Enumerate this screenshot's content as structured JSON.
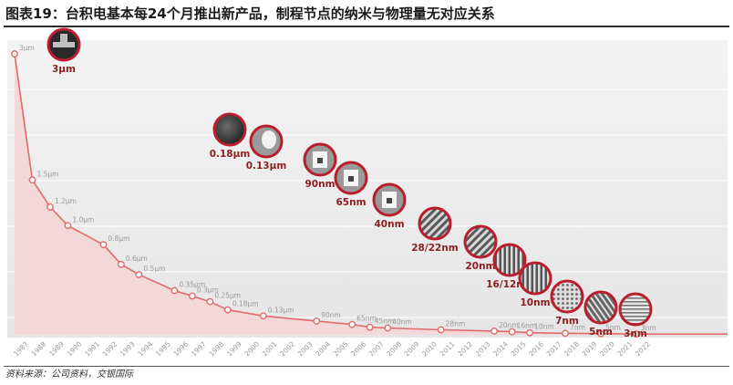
{
  "header": {
    "title": "图表19：台积电基本每24个月推出新产品，制程节点的纳米与物理量无对应关系"
  },
  "footer": {
    "source": "资料来源：公司资料，交银国际"
  },
  "colors": {
    "line": "#e06b6b",
    "area": "#f6d4d4",
    "node_fill": "#ffffff",
    "label_red": "#8b1e1e",
    "value_label": "#999999",
    "badge_ring": "#b81e2c"
  },
  "chart_data": {
    "type": "area",
    "title": "图表19：台积电基本每24个月推出新产品，制程节点的纳米与物理量无对应关系",
    "xlabel": "",
    "ylabel": "",
    "grid": true,
    "years": [
      "1987",
      "1988",
      "1989",
      "1990",
      "1991",
      "1992",
      "1993",
      "1994",
      "1995",
      "1996",
      "1997",
      "1998",
      "1999",
      "2000",
      "2001",
      "2002",
      "2003",
      "2004",
      "2005",
      "2006",
      "2007",
      "2008",
      "2009",
      "2010",
      "2011",
      "2012",
      "2013",
      "2014",
      "2015",
      "2016",
      "2017",
      "2018",
      "2019",
      "2020",
      "2021",
      "2022"
    ],
    "points": [
      {
        "year": 1987,
        "label": "3μm",
        "value": 3000
      },
      {
        "year": 1988,
        "label": "1.5μm",
        "value": 1500
      },
      {
        "year": 1989,
        "label": "1.2μm",
        "value": 1200
      },
      {
        "year": 1990,
        "label": "1.0μm",
        "value": 1000
      },
      {
        "year": 1992,
        "label": "0.8μm",
        "value": 800
      },
      {
        "year": 1993,
        "label": "0.6μm",
        "value": 600
      },
      {
        "year": 1994,
        "label": "0.5μm",
        "value": 500
      },
      {
        "year": 1996,
        "label": "0.35μm",
        "value": 350
      },
      {
        "year": 1997,
        "label": "0.3μm",
        "value": 300
      },
      {
        "year": 1998,
        "label": "0.25μm",
        "value": 250
      },
      {
        "year": 1999,
        "label": "0.18μm",
        "value": 180
      },
      {
        "year": 2001,
        "label": "0.13μm",
        "value": 130
      },
      {
        "year": 2004,
        "label": "90nm",
        "value": 90
      },
      {
        "year": 2006,
        "label": "65nm",
        "value": 65
      },
      {
        "year": 2007,
        "label": "45nm",
        "value": 45
      },
      {
        "year": 2008,
        "label": "40nm",
        "value": 40
      },
      {
        "year": 2011,
        "label": "28nm",
        "value": 28
      },
      {
        "year": 2014,
        "label": "20nm",
        "value": 20
      },
      {
        "year": 2015,
        "label": "16nm",
        "value": 16
      },
      {
        "year": 2016,
        "label": "10nm",
        "value": 10
      },
      {
        "year": 2018,
        "label": "7nm",
        "value": 7
      },
      {
        "year": 2020,
        "label": "5nm",
        "value": 5
      },
      {
        "year": 2022,
        "label": "3nm",
        "value": 3
      }
    ],
    "ylim": [
      0,
      3000
    ],
    "badges": [
      {
        "label": "3μm",
        "year": 1987,
        "pattern": "cross"
      },
      {
        "label": "0.18μm",
        "year": 1999,
        "pattern": "dark"
      },
      {
        "label": "0.13μm",
        "year": 2000,
        "pattern": "blob"
      },
      {
        "label": "90nm",
        "year": 2005,
        "pattern": "block"
      },
      {
        "label": "65nm",
        "year": 2006,
        "pattern": "block"
      },
      {
        "label": "40nm",
        "year": 2008,
        "pattern": "block"
      },
      {
        "label": "28/22nm",
        "year": 2010,
        "pattern": "diag"
      },
      {
        "label": "20nm",
        "year": 2013,
        "pattern": "diag"
      },
      {
        "label": "16/12nm",
        "year": 2014,
        "pattern": "fins"
      },
      {
        "label": "10nm",
        "year": 2015,
        "pattern": "fins"
      },
      {
        "label": "7nm",
        "year": 2018,
        "pattern": "dots"
      },
      {
        "label": "5nm",
        "year": 2019,
        "pattern": "diag2"
      },
      {
        "label": "3nm",
        "year": 2021,
        "pattern": "hlines"
      }
    ]
  }
}
